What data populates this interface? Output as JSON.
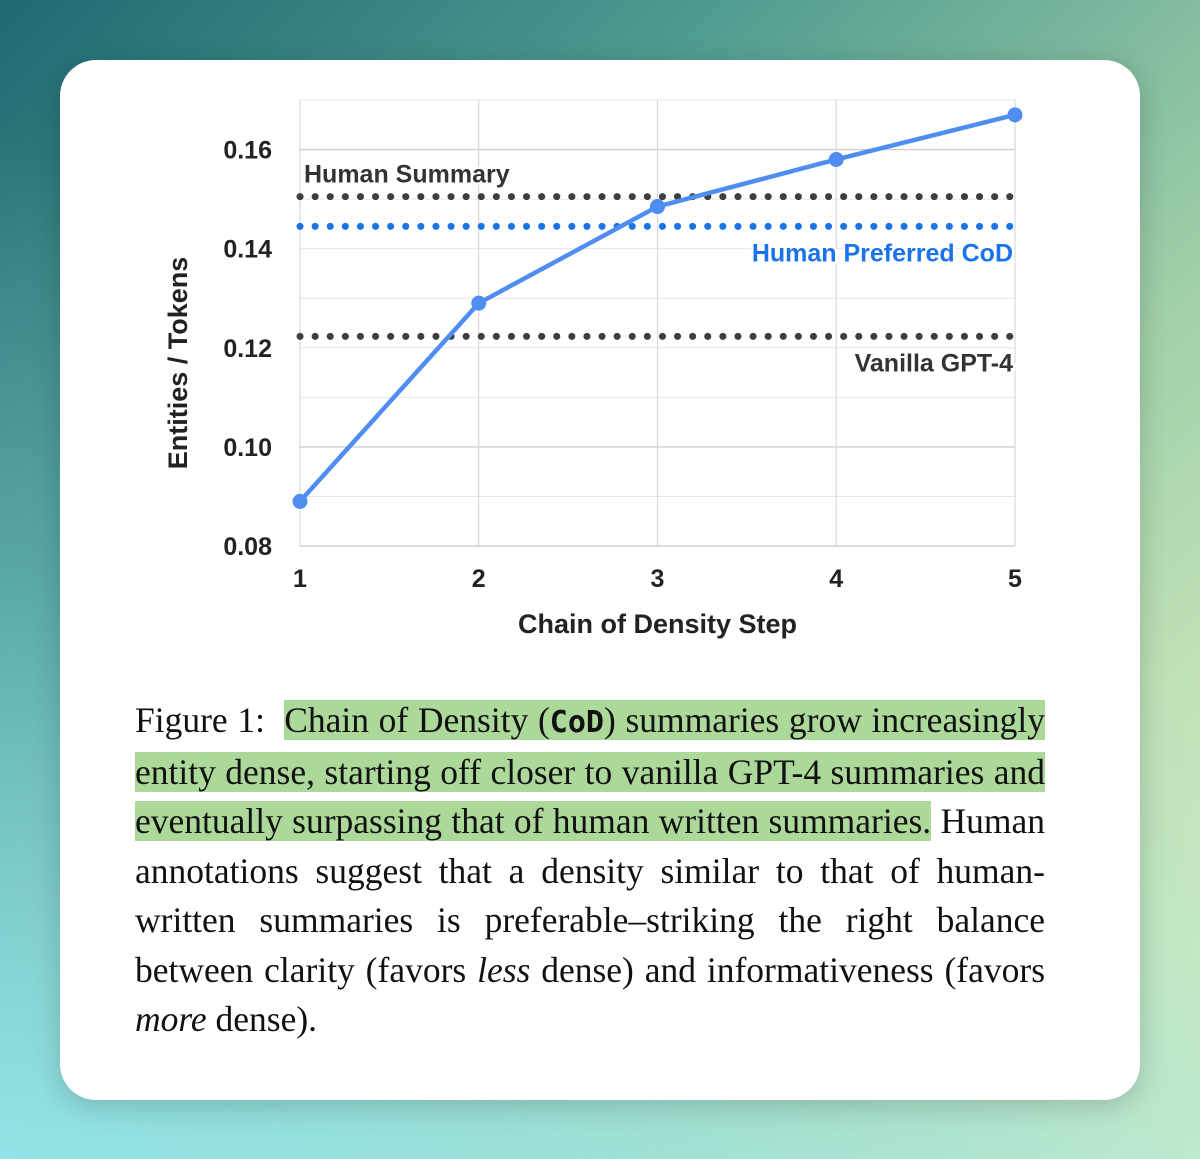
{
  "chart_data": {
    "type": "line",
    "x": [
      1,
      2,
      3,
      4,
      5
    ],
    "series": [
      {
        "name": "",
        "values": [
          0.089,
          0.129,
          0.1485,
          0.158,
          0.167
        ],
        "color": "#4f8ef0"
      }
    ],
    "reference_lines": [
      {
        "label": "Human Summary",
        "value": 0.1505,
        "color": "#3a3f44",
        "label_position": "top-left"
      },
      {
        "label": "Human Preferred CoD",
        "value": 0.1445,
        "color": "#1a73e8",
        "label_position": "bottom-right"
      },
      {
        "label": "Vanilla GPT-4",
        "value": 0.1223,
        "color": "#3a3f44",
        "label_position": "bottom-right"
      }
    ],
    "xlabel": "Chain of Density Step",
    "ylabel": "Entities / Tokens",
    "xticks": [
      "1",
      "2",
      "3",
      "4",
      "5"
    ],
    "yticks": [
      "0.08",
      "0.10",
      "0.12",
      "0.14",
      "0.16"
    ],
    "xlim": [
      1,
      5
    ],
    "ylim": [
      0.08,
      0.17
    ],
    "grid": true,
    "legend": "none"
  },
  "caption": {
    "figure_label": "Figure 1:",
    "highlight_a": "Chain of Density (",
    "cod": "CoD",
    "highlight_b": ") summaries grow increasingly entity dense, starting off closer to vanilla GPT-4 summaries and eventually surpassing that of human written summaries.",
    "text_1": "Human annotations suggest that a density similar to that of human-written summaries is preferable–striking the right balance between clarity (favors",
    "em_1": "less",
    "text_2": "dense) and informativeness (favors",
    "em_2": "more",
    "text_3": "dense)."
  }
}
